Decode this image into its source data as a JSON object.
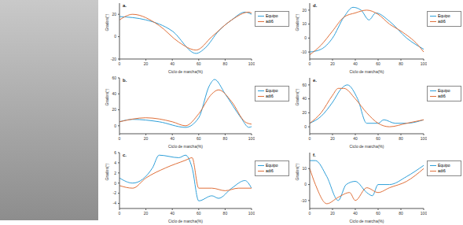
{
  "chart_data": [
    {
      "type": "line",
      "title": "a.",
      "x_label": "Ciclo de marcha(%)",
      "y_label": "Grados(°)",
      "xlim": [
        0,
        100
      ],
      "xticks": [
        0,
        20,
        40,
        60,
        80,
        100
      ],
      "ylim": [
        -20,
        30
      ],
      "yticks": [
        -20,
        0,
        20
      ],
      "legend": "right",
      "series": [
        {
          "name": "Equipo",
          "color": "#2e9fd9",
          "x": [
            0,
            20,
            40,
            58,
            65,
            75,
            85,
            95,
            100
          ],
          "values": [
            18,
            15,
            5,
            -15,
            -10,
            5,
            15,
            22,
            20
          ]
        },
        {
          "name": "adt6",
          "color": "#e0703a",
          "x": [
            0,
            10,
            30,
            45,
            58,
            70,
            85,
            98,
            100
          ],
          "values": [
            15,
            20,
            10,
            -5,
            -12,
            0,
            15,
            22,
            21
          ]
        }
      ]
    },
    {
      "type": "line",
      "title": "b.",
      "x_label": "Ciclo de marcha(%)",
      "y_label": "Grados(°)",
      "xlim": [
        0,
        100
      ],
      "xticks": [
        0,
        20,
        40,
        60,
        80,
        100
      ],
      "ylim": [
        -10,
        60
      ],
      "yticks": [
        0,
        20,
        40,
        60
      ],
      "legend": "right",
      "series": [
        {
          "name": "Equipo",
          "color": "#2e9fd9",
          "x": [
            0,
            10,
            30,
            50,
            60,
            68,
            72,
            80,
            92,
            98,
            100
          ],
          "values": [
            5,
            8,
            5,
            -2,
            10,
            50,
            58,
            40,
            10,
            -2,
            -1
          ]
        },
        {
          "name": "adt6",
          "color": "#e0703a",
          "x": [
            0,
            20,
            40,
            50,
            60,
            70,
            75,
            85,
            95,
            100
          ],
          "values": [
            5,
            10,
            5,
            0,
            15,
            40,
            45,
            30,
            5,
            2
          ]
        }
      ]
    },
    {
      "type": "line",
      "title": "c.",
      "x_label": "Ciclo de marcha(%)",
      "y_label": "Grados(°)",
      "xlim": [
        0,
        100
      ],
      "xticks": [
        0,
        20,
        40,
        60,
        80,
        100
      ],
      "ylim": [
        -5,
        6
      ],
      "yticks": [
        -4,
        -2,
        0,
        2,
        4,
        6
      ],
      "legend": "right",
      "series": [
        {
          "name": "Equipo",
          "color": "#2e9fd9",
          "x": [
            0,
            10,
            25,
            30,
            45,
            50,
            55,
            60,
            70,
            75,
            85,
            95,
            100
          ],
          "values": [
            1,
            0,
            3,
            5.5,
            5,
            5.5,
            3,
            -3.5,
            -2.5,
            -3,
            -1,
            0.5,
            -1
          ]
        },
        {
          "name": "adt6",
          "color": "#e0703a",
          "x": [
            0,
            10,
            20,
            35,
            50,
            55,
            60,
            70,
            80,
            90,
            100
          ],
          "values": [
            -0.5,
            -1,
            1,
            3,
            4.5,
            5,
            -1,
            -1,
            -1.5,
            -1,
            -1
          ]
        }
      ]
    },
    {
      "type": "line",
      "title": "d.",
      "x_label": "Ciclo de marcha(%)",
      "y_label": "Grados(°)",
      "xlim": [
        0,
        100
      ],
      "xticks": [
        0,
        20,
        40,
        60,
        80,
        100
      ],
      "ylim": [
        -15,
        25
      ],
      "yticks": [
        -10,
        0,
        10,
        20
      ],
      "legend": "right",
      "series": [
        {
          "name": "Equipo",
          "color": "#2e9fd9",
          "x": [
            0,
            10,
            20,
            30,
            38,
            45,
            52,
            58,
            70,
            85,
            100
          ],
          "values": [
            -10,
            -8,
            0,
            15,
            22,
            20,
            13,
            18,
            12,
            0,
            -8
          ]
        },
        {
          "name": "adt6",
          "color": "#e0703a",
          "x": [
            0,
            10,
            20,
            30,
            40,
            50,
            60,
            70,
            80,
            95,
            100
          ],
          "values": [
            -12,
            -5,
            5,
            15,
            18,
            20,
            17,
            10,
            5,
            -5,
            -10
          ]
        }
      ]
    },
    {
      "type": "line",
      "title": "e.",
      "x_label": "Ciclo de marcha(%)",
      "y_label": "Grados(°)",
      "xlim": [
        0,
        100
      ],
      "xticks": [
        0,
        20,
        40,
        60,
        80,
        100
      ],
      "ylim": [
        -10,
        70
      ],
      "yticks": [
        0,
        20,
        40,
        60
      ],
      "legend": "right",
      "series": [
        {
          "name": "Equipo",
          "color": "#2e9fd9",
          "x": [
            0,
            10,
            20,
            28,
            33,
            42,
            50,
            60,
            65,
            75,
            85,
            100
          ],
          "values": [
            5,
            15,
            35,
            55,
            60,
            40,
            5,
            5,
            10,
            5,
            5,
            10
          ]
        },
        {
          "name": "adt6",
          "color": "#e0703a",
          "x": [
            0,
            10,
            20,
            25,
            30,
            40,
            50,
            60,
            70,
            85,
            100
          ],
          "values": [
            5,
            20,
            45,
            55,
            55,
            40,
            20,
            5,
            0,
            5,
            10
          ]
        }
      ]
    },
    {
      "type": "line",
      "title": "f.",
      "x_label": "Ciclo de marcha(%)",
      "y_label": "Grados(°)",
      "xlim": [
        0,
        100
      ],
      "xticks": [
        0,
        20,
        40,
        60,
        80,
        100
      ],
      "ylim": [
        -15,
        20
      ],
      "yticks": [
        -10,
        0,
        10
      ],
      "legend": "right",
      "series": [
        {
          "name": "Equipo",
          "color": "#2e9fd9",
          "x": [
            0,
            5,
            15,
            25,
            32,
            40,
            50,
            55,
            60,
            70,
            85,
            100
          ],
          "values": [
            15,
            15,
            5,
            -10,
            0,
            2,
            -5,
            -7,
            0,
            0,
            5,
            12
          ]
        },
        {
          "name": "adt6",
          "color": "#e0703a",
          "x": [
            0,
            5,
            15,
            25,
            35,
            40,
            50,
            60,
            70,
            85,
            100
          ],
          "values": [
            10,
            0,
            -12,
            -8,
            -5,
            -10,
            -2,
            -5,
            -2,
            2,
            10
          ]
        }
      ]
    }
  ]
}
